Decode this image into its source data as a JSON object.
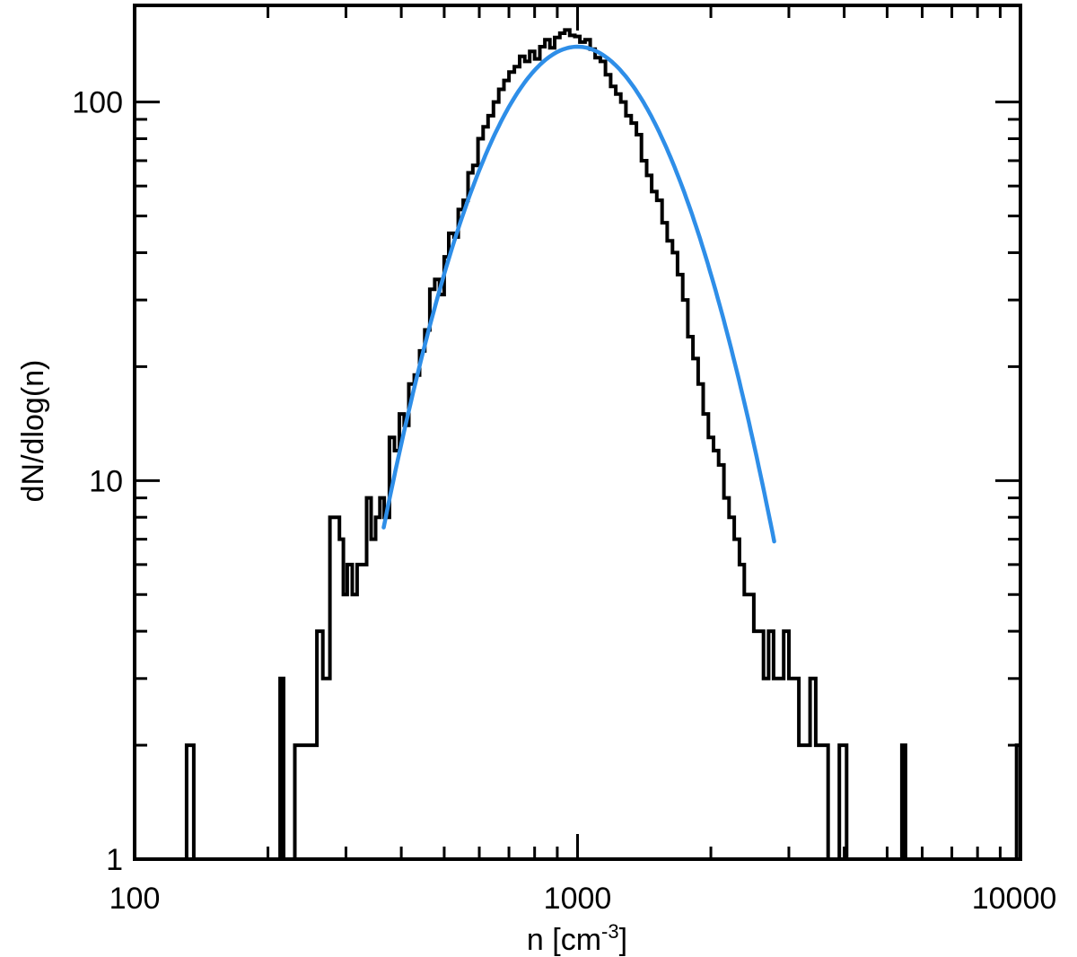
{
  "chart_data": {
    "type": "line",
    "xlabel_main": "n [cm",
    "xlabel_sup": "-3",
    "xlabel_close": "]",
    "ylabel": "dN/dlog(n)",
    "x_scale": "log",
    "y_scale": "log",
    "xlim": [
      100,
      10000
    ],
    "ylim": [
      1,
      180
    ],
    "x_ticks": [
      {
        "value": 100,
        "label": "100"
      },
      {
        "value": 1000,
        "label": "1000"
      },
      {
        "value": 10000,
        "label": "10000"
      }
    ],
    "y_ticks": [
      {
        "value": 1,
        "label": "1"
      },
      {
        "value": 10,
        "label": "10"
      },
      {
        "value": 100,
        "label": "100"
      }
    ],
    "grid": false,
    "series": [
      {
        "kind": "histogram",
        "color": "#000000",
        "points": [
          [
            100,
            1
          ],
          [
            130,
            1
          ],
          [
            131,
            2
          ],
          [
            136,
            1
          ],
          [
            210,
            1
          ],
          [
            213,
            3
          ],
          [
            217,
            1
          ],
          [
            230,
            2
          ],
          [
            248,
            2
          ],
          [
            258,
            4
          ],
          [
            266,
            3
          ],
          [
            276,
            8
          ],
          [
            284,
            8
          ],
          [
            290,
            7
          ],
          [
            296,
            5
          ],
          [
            302,
            6
          ],
          [
            310,
            5
          ],
          [
            318,
            6
          ],
          [
            326,
            6
          ],
          [
            334,
            9
          ],
          [
            342,
            7
          ],
          [
            350,
            8
          ],
          [
            358,
            9
          ],
          [
            366,
            8
          ],
          [
            376,
            13
          ],
          [
            386,
            12
          ],
          [
            396,
            15
          ],
          [
            406,
            14
          ],
          [
            416,
            18
          ],
          [
            428,
            19
          ],
          [
            440,
            22
          ],
          [
            452,
            25
          ],
          [
            464,
            32
          ],
          [
            476,
            34
          ],
          [
            488,
            31
          ],
          [
            500,
            39
          ],
          [
            512,
            45
          ],
          [
            526,
            44
          ],
          [
            538,
            52
          ],
          [
            552,
            55
          ],
          [
            566,
            65
          ],
          [
            580,
            68
          ],
          [
            596,
            80
          ],
          [
            612,
            86
          ],
          [
            628,
            92
          ],
          [
            646,
            100
          ],
          [
            664,
            108
          ],
          [
            682,
            114
          ],
          [
            700,
            120
          ],
          [
            720,
            124
          ],
          [
            740,
            132
          ],
          [
            760,
            128
          ],
          [
            780,
            136
          ],
          [
            800,
            130
          ],
          [
            822,
            140
          ],
          [
            844,
            146
          ],
          [
            866,
            139
          ],
          [
            888,
            148
          ],
          [
            912,
            152
          ],
          [
            936,
            155
          ],
          [
            960,
            150
          ],
          [
            986,
            149
          ],
          [
            1012,
            144
          ],
          [
            1040,
            146
          ],
          [
            1068,
            138
          ],
          [
            1096,
            131
          ],
          [
            1126,
            128
          ],
          [
            1156,
            118
          ],
          [
            1188,
            110
          ],
          [
            1220,
            105
          ],
          [
            1252,
            100
          ],
          [
            1286,
            92
          ],
          [
            1322,
            88
          ],
          [
            1358,
            82
          ],
          [
            1394,
            70
          ],
          [
            1432,
            64
          ],
          [
            1470,
            58
          ],
          [
            1510,
            55
          ],
          [
            1552,
            48
          ],
          [
            1594,
            43
          ],
          [
            1638,
            40
          ],
          [
            1682,
            35
          ],
          [
            1728,
            30
          ],
          [
            1774,
            24
          ],
          [
            1822,
            21
          ],
          [
            1872,
            18
          ],
          [
            1922,
            15
          ],
          [
            1974,
            13
          ],
          [
            2028,
            12
          ],
          [
            2082,
            11
          ],
          [
            2140,
            9
          ],
          [
            2198,
            8
          ],
          [
            2258,
            7
          ],
          [
            2320,
            6
          ],
          [
            2380,
            5
          ],
          [
            2440,
            5
          ],
          [
            2500,
            4
          ],
          [
            2560,
            4
          ],
          [
            2630,
            3
          ],
          [
            2700,
            4
          ],
          [
            2770,
            3
          ],
          [
            2840,
            3
          ],
          [
            2920,
            4
          ],
          [
            3000,
            3
          ],
          [
            3080,
            3
          ],
          [
            3160,
            2
          ],
          [
            3250,
            2
          ],
          [
            3350,
            3
          ],
          [
            3450,
            2
          ],
          [
            3550,
            2
          ],
          [
            3680,
            1
          ],
          [
            3800,
            1
          ],
          [
            3900,
            2
          ],
          [
            4050,
            1
          ],
          [
            5400,
            2
          ],
          [
            5500,
            1
          ],
          [
            9800,
            2
          ],
          [
            10000,
            1
          ]
        ]
      },
      {
        "kind": "lognormal-fit",
        "color": "#2e8ee8",
        "peak_n": 1000,
        "peak_value": 140,
        "sigma_dex": 0.181,
        "n_range": [
          365,
          2780
        ]
      }
    ]
  }
}
